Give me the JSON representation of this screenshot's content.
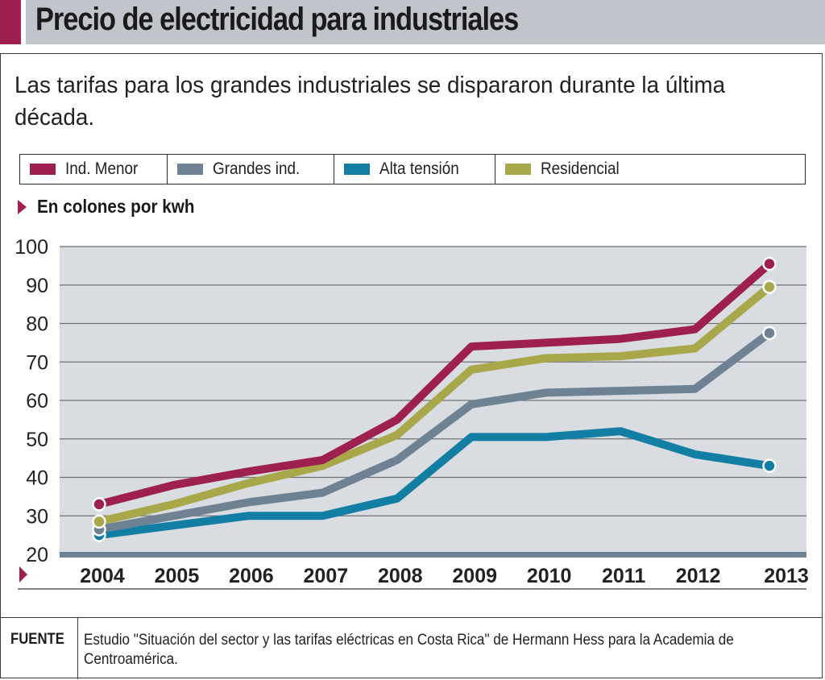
{
  "header": {
    "title": "Precio de electricidad para industriales",
    "subtitle": "Las tarifas para los grandes industriales se dispararon durante la última década.",
    "accent_color": "#9e2050"
  },
  "unit_label": "En colones por kwh",
  "source": {
    "label": "FUENTE",
    "text": "Estudio \"Situación del sector y las tarifas eléctricas en Costa Rica\" de Hermann Hess para la Academia de Centroamérica."
  },
  "chart_data": {
    "type": "line",
    "title": "Precio de electricidad para industriales",
    "subtitle": "Las tarifas para los grandes industriales se dispararon durante la última década.",
    "xlabel": "",
    "ylabel": "En colones por kwh",
    "x": [
      "2004",
      "2005",
      "2006",
      "2007",
      "2008",
      "2009",
      "2010",
      "2011",
      "2012",
      "2013"
    ],
    "ylim": [
      20,
      100
    ],
    "yticks": [
      20,
      30,
      40,
      50,
      60,
      70,
      80,
      90,
      100
    ],
    "grid": true,
    "legend_position": "top",
    "series": [
      {
        "name": "Ind. Menor",
        "color": "#9e2050",
        "values": [
          33,
          38,
          41.5,
          44.5,
          55,
          74,
          75,
          76,
          78.5,
          95.5
        ]
      },
      {
        "name": "Grandes ind.",
        "color": "#6e8294",
        "values": [
          26.5,
          30,
          33.5,
          36,
          44.5,
          59,
          62,
          62.5,
          63,
          77.5
        ]
      },
      {
        "name": "Alta tensión",
        "color": "#137ea4",
        "values": [
          25,
          27.5,
          30,
          30,
          34.5,
          50.5,
          50.5,
          52,
          46,
          43
        ]
      },
      {
        "name": "Residencial",
        "color": "#a8a84a",
        "values": [
          28.5,
          33,
          38.5,
          43,
          51,
          68,
          71,
          71.5,
          73.5,
          89.5
        ]
      }
    ]
  }
}
